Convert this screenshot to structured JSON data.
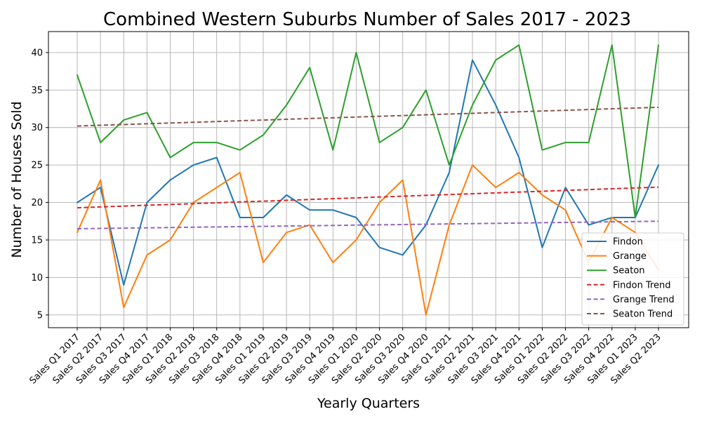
{
  "chart_data": {
    "type": "line",
    "title": "Combined Western Suburbs Number of Sales 2017 - 2023",
    "xlabel": "Yearly Quarters",
    "ylabel": "Number of Houses Sold",
    "ylim": [
      3.3,
      42.8
    ],
    "yticks": [
      5,
      10,
      15,
      20,
      25,
      30,
      35,
      40
    ],
    "grid": true,
    "legend_position": "lower-right",
    "categories": [
      "Sales Q1 2017",
      "Sales Q2 2017",
      "Sales Q3 2017",
      "Sales Q4 2017",
      "Sales Q1 2018",
      "Sales Q2 2018",
      "Sales Q3 2018",
      "Sales Q4 2018",
      "Sales Q1 2019",
      "Sales Q2 2019",
      "Sales Q3 2019",
      "Sales Q4 2019",
      "Sales Q1 2020",
      "Sales Q2 2020",
      "Sales Q3 2020",
      "Sales Q4 2020",
      "Sales Q1 2021",
      "Sales Q2 2021",
      "Sales Q3 2021",
      "Sales Q4 2021",
      "Sales Q1 2022",
      "Sales Q2 2022",
      "Sales Q3 2022",
      "Sales Q4 2022",
      "Sales Q1 2023",
      "Sales Q2 2023"
    ],
    "series": [
      {
        "name": "Findon",
        "color": "#1f77b4",
        "style": "solid",
        "values": [
          20,
          22,
          9,
          20,
          23,
          25,
          26,
          18,
          18,
          21,
          19,
          19,
          18,
          14,
          13,
          17,
          24,
          39,
          33,
          26,
          14,
          22,
          17,
          18,
          18,
          25
        ]
      },
      {
        "name": "Grange",
        "color": "#ff7f0e",
        "style": "solid",
        "values": [
          16,
          23,
          6,
          13,
          15,
          20,
          22,
          24,
          12,
          16,
          17,
          12,
          15,
          20,
          23,
          5,
          17,
          25,
          22,
          24,
          21,
          19,
          12,
          18,
          16,
          11
        ]
      },
      {
        "name": "Seaton",
        "color": "#2ca02c",
        "style": "solid",
        "values": [
          37,
          28,
          31,
          32,
          26,
          28,
          28,
          27,
          29,
          33,
          38,
          27,
          40,
          28,
          30,
          35,
          25,
          33,
          39,
          41,
          27,
          28,
          28,
          41,
          18,
          41
        ]
      },
      {
        "name": "Findon Trend",
        "color": "#d62728",
        "style": "dashed",
        "values": [
          19.3,
          19.41,
          19.52,
          19.63,
          19.74,
          19.85,
          19.96,
          20.07,
          20.18,
          20.29,
          20.4,
          20.51,
          20.62,
          20.73,
          20.84,
          20.95,
          21.06,
          21.17,
          21.28,
          21.39,
          21.5,
          21.61,
          21.72,
          21.83,
          21.94,
          22.05
        ]
      },
      {
        "name": "Grange Trend",
        "color": "#9467bd",
        "style": "dashed",
        "values": [
          16.5,
          16.54,
          16.58,
          16.62,
          16.66,
          16.7,
          16.74,
          16.78,
          16.82,
          16.86,
          16.9,
          16.94,
          16.98,
          17.02,
          17.06,
          17.1,
          17.14,
          17.18,
          17.22,
          17.26,
          17.3,
          17.34,
          17.38,
          17.42,
          17.46,
          17.5
        ]
      },
      {
        "name": "Seaton Trend",
        "color": "#8c564b",
        "style": "dashed",
        "values": [
          30.2,
          30.3,
          30.4,
          30.5,
          30.6,
          30.7,
          30.8,
          30.9,
          31.0,
          31.1,
          31.2,
          31.3,
          31.4,
          31.5,
          31.6,
          31.7,
          31.8,
          31.9,
          32.0,
          32.1,
          32.2,
          32.3,
          32.4,
          32.5,
          32.6,
          32.7
        ]
      }
    ]
  }
}
